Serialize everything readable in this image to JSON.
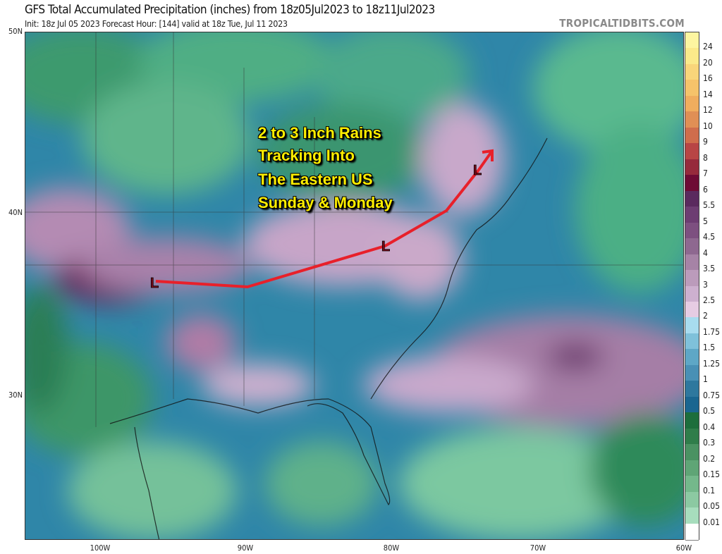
{
  "header": {
    "title": "GFS Total Accumulated Precipitation (inches) from 18z05Jul2023 to 18z11Jul2023",
    "subtitle": "Init: 18z Jul 05 2023   Forecast Hour: [144]   valid at 18z Tue, Jul 11 2023",
    "watermark": "TROPICALTIDBITS.COM"
  },
  "map": {
    "lat_labels": [
      "50N",
      "40N",
      "30N"
    ],
    "lon_labels": [
      "100W",
      "90W",
      "80W",
      "70W",
      "60W"
    ],
    "annotation": [
      "2 to 3 Inch Rains",
      "Tracking Into",
      "The Eastern US",
      "Sunday & Monday"
    ],
    "track_color": "#e8202a",
    "low_marker": "L",
    "low_marker_color": "#7a0a1a"
  },
  "colorbar": {
    "labels": [
      "24",
      "20",
      "16",
      "14",
      "12",
      "10",
      "9",
      "8",
      "7",
      "6",
      "5.5",
      "5",
      "4.5",
      "4",
      "3.5",
      "3",
      "2.5",
      "2",
      "1.75",
      "1.5",
      "1.25",
      "1",
      "0.75",
      "0.5",
      "0.4",
      "0.3",
      "0.2",
      "0.15",
      "0.1",
      "0.05",
      "0.01"
    ],
    "colors": [
      "#fdf5a0",
      "#fbe98a",
      "#f9d57a",
      "#f6c36a",
      "#f0ad5e",
      "#e08f55",
      "#cf6d4c",
      "#b84545",
      "#962a3c",
      "#6e0b35",
      "#5a2a5e",
      "#6d3d72",
      "#7d5080",
      "#8e6890",
      "#a683a6",
      "#bb9bbb",
      "#cdb0cf",
      "#e6cce3",
      "#a8dcef",
      "#7fc1da",
      "#5ea7c6",
      "#4990b5",
      "#2e789e",
      "#1a6690",
      "#1d6e3c",
      "#2f7d4a",
      "#4a9262",
      "#5fa576",
      "#74b88b",
      "#8cc9a2",
      "#a7ddbd",
      "#ffffff"
    ]
  }
}
